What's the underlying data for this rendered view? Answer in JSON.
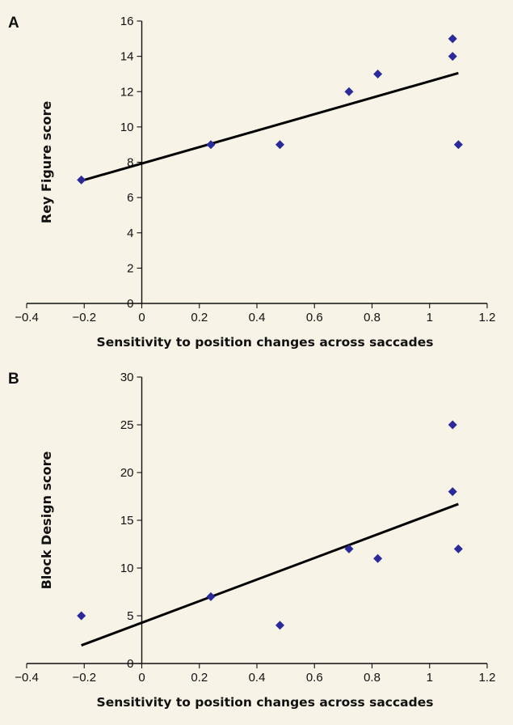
{
  "chart_data": [
    {
      "panel": "A",
      "type": "scatter",
      "xlabel": "Sensitivity to position changes across saccades",
      "ylabel": "Rey Figure score",
      "xlim": [
        -0.4,
        1.2
      ],
      "ylim": [
        0,
        16
      ],
      "x_ticks": [
        "−0.4",
        "−0.2",
        "0",
        "0.2",
        "0.4",
        "0.6",
        "0.8",
        "1",
        "1.2"
      ],
      "y_ticks": [
        "0",
        "2",
        "4",
        "6",
        "8",
        "10",
        "12",
        "14",
        "16"
      ],
      "marker": "diamond",
      "marker_color": "#2a2a9a",
      "points": [
        {
          "x": -0.21,
          "y": 7
        },
        {
          "x": 0.24,
          "y": 9
        },
        {
          "x": 0.48,
          "y": 9
        },
        {
          "x": 0.72,
          "y": 12
        },
        {
          "x": 0.82,
          "y": 13
        },
        {
          "x": 1.08,
          "y": 15
        },
        {
          "x": 1.08,
          "y": 14
        },
        {
          "x": 1.1,
          "y": 9
        }
      ],
      "trendline": {
        "x": [
          -0.21,
          1.1
        ],
        "y": [
          6.95,
          13.05
        ]
      }
    },
    {
      "panel": "B",
      "type": "scatter",
      "xlabel": "Sensitivity to position changes across saccades",
      "ylabel": "Block Design score",
      "xlim": [
        -0.4,
        1.2
      ],
      "ylim": [
        0,
        30
      ],
      "x_ticks": [
        "−0.4",
        "−0.2",
        "0",
        "0.2",
        "0.4",
        "0.6",
        "0.8",
        "1",
        "1.2"
      ],
      "y_ticks": [
        "0",
        "5",
        "10",
        "15",
        "20",
        "25",
        "30"
      ],
      "marker": "diamond",
      "marker_color": "#2a2a9a",
      "points": [
        {
          "x": -0.21,
          "y": 5
        },
        {
          "x": 0.24,
          "y": 7
        },
        {
          "x": 0.48,
          "y": 4
        },
        {
          "x": 0.72,
          "y": 12
        },
        {
          "x": 0.82,
          "y": 11
        },
        {
          "x": 1.08,
          "y": 25
        },
        {
          "x": 1.08,
          "y": 18
        },
        {
          "x": 1.1,
          "y": 12
        }
      ],
      "trendline": {
        "x": [
          -0.21,
          1.1
        ],
        "y": [
          1.9,
          16.7
        ]
      }
    }
  ]
}
